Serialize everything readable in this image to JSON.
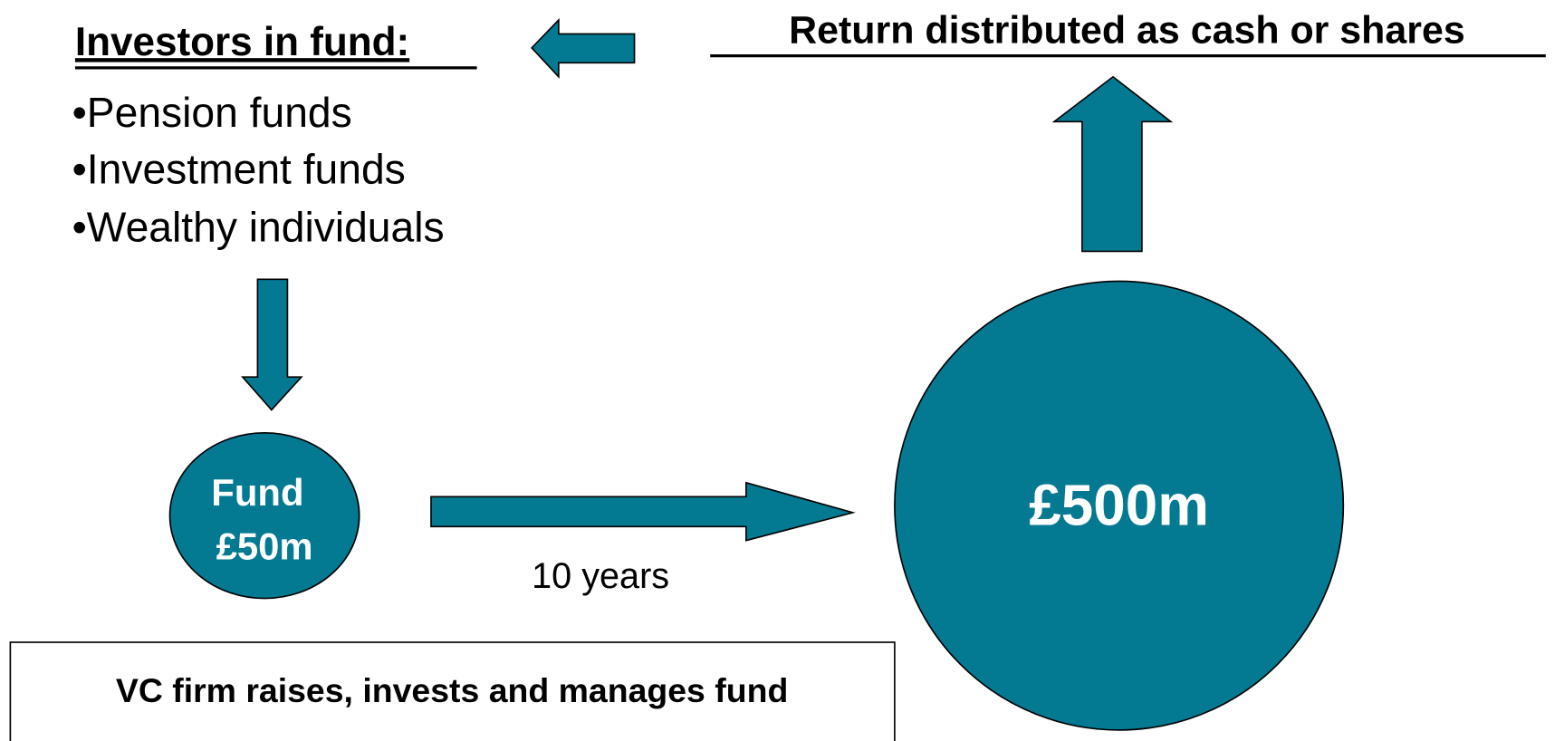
{
  "header": {
    "investors_title": "Investors in fund:",
    "return_title": "Return distributed as cash or shares"
  },
  "investors": [
    "•Pension funds",
    "•Investment funds",
    "•Wealthy individuals"
  ],
  "fund": {
    "line1": "Fund",
    "line2": "£50m"
  },
  "duration": "10 years",
  "result": "£500m",
  "footer": "VC firm raises, invests and manages fund"
}
